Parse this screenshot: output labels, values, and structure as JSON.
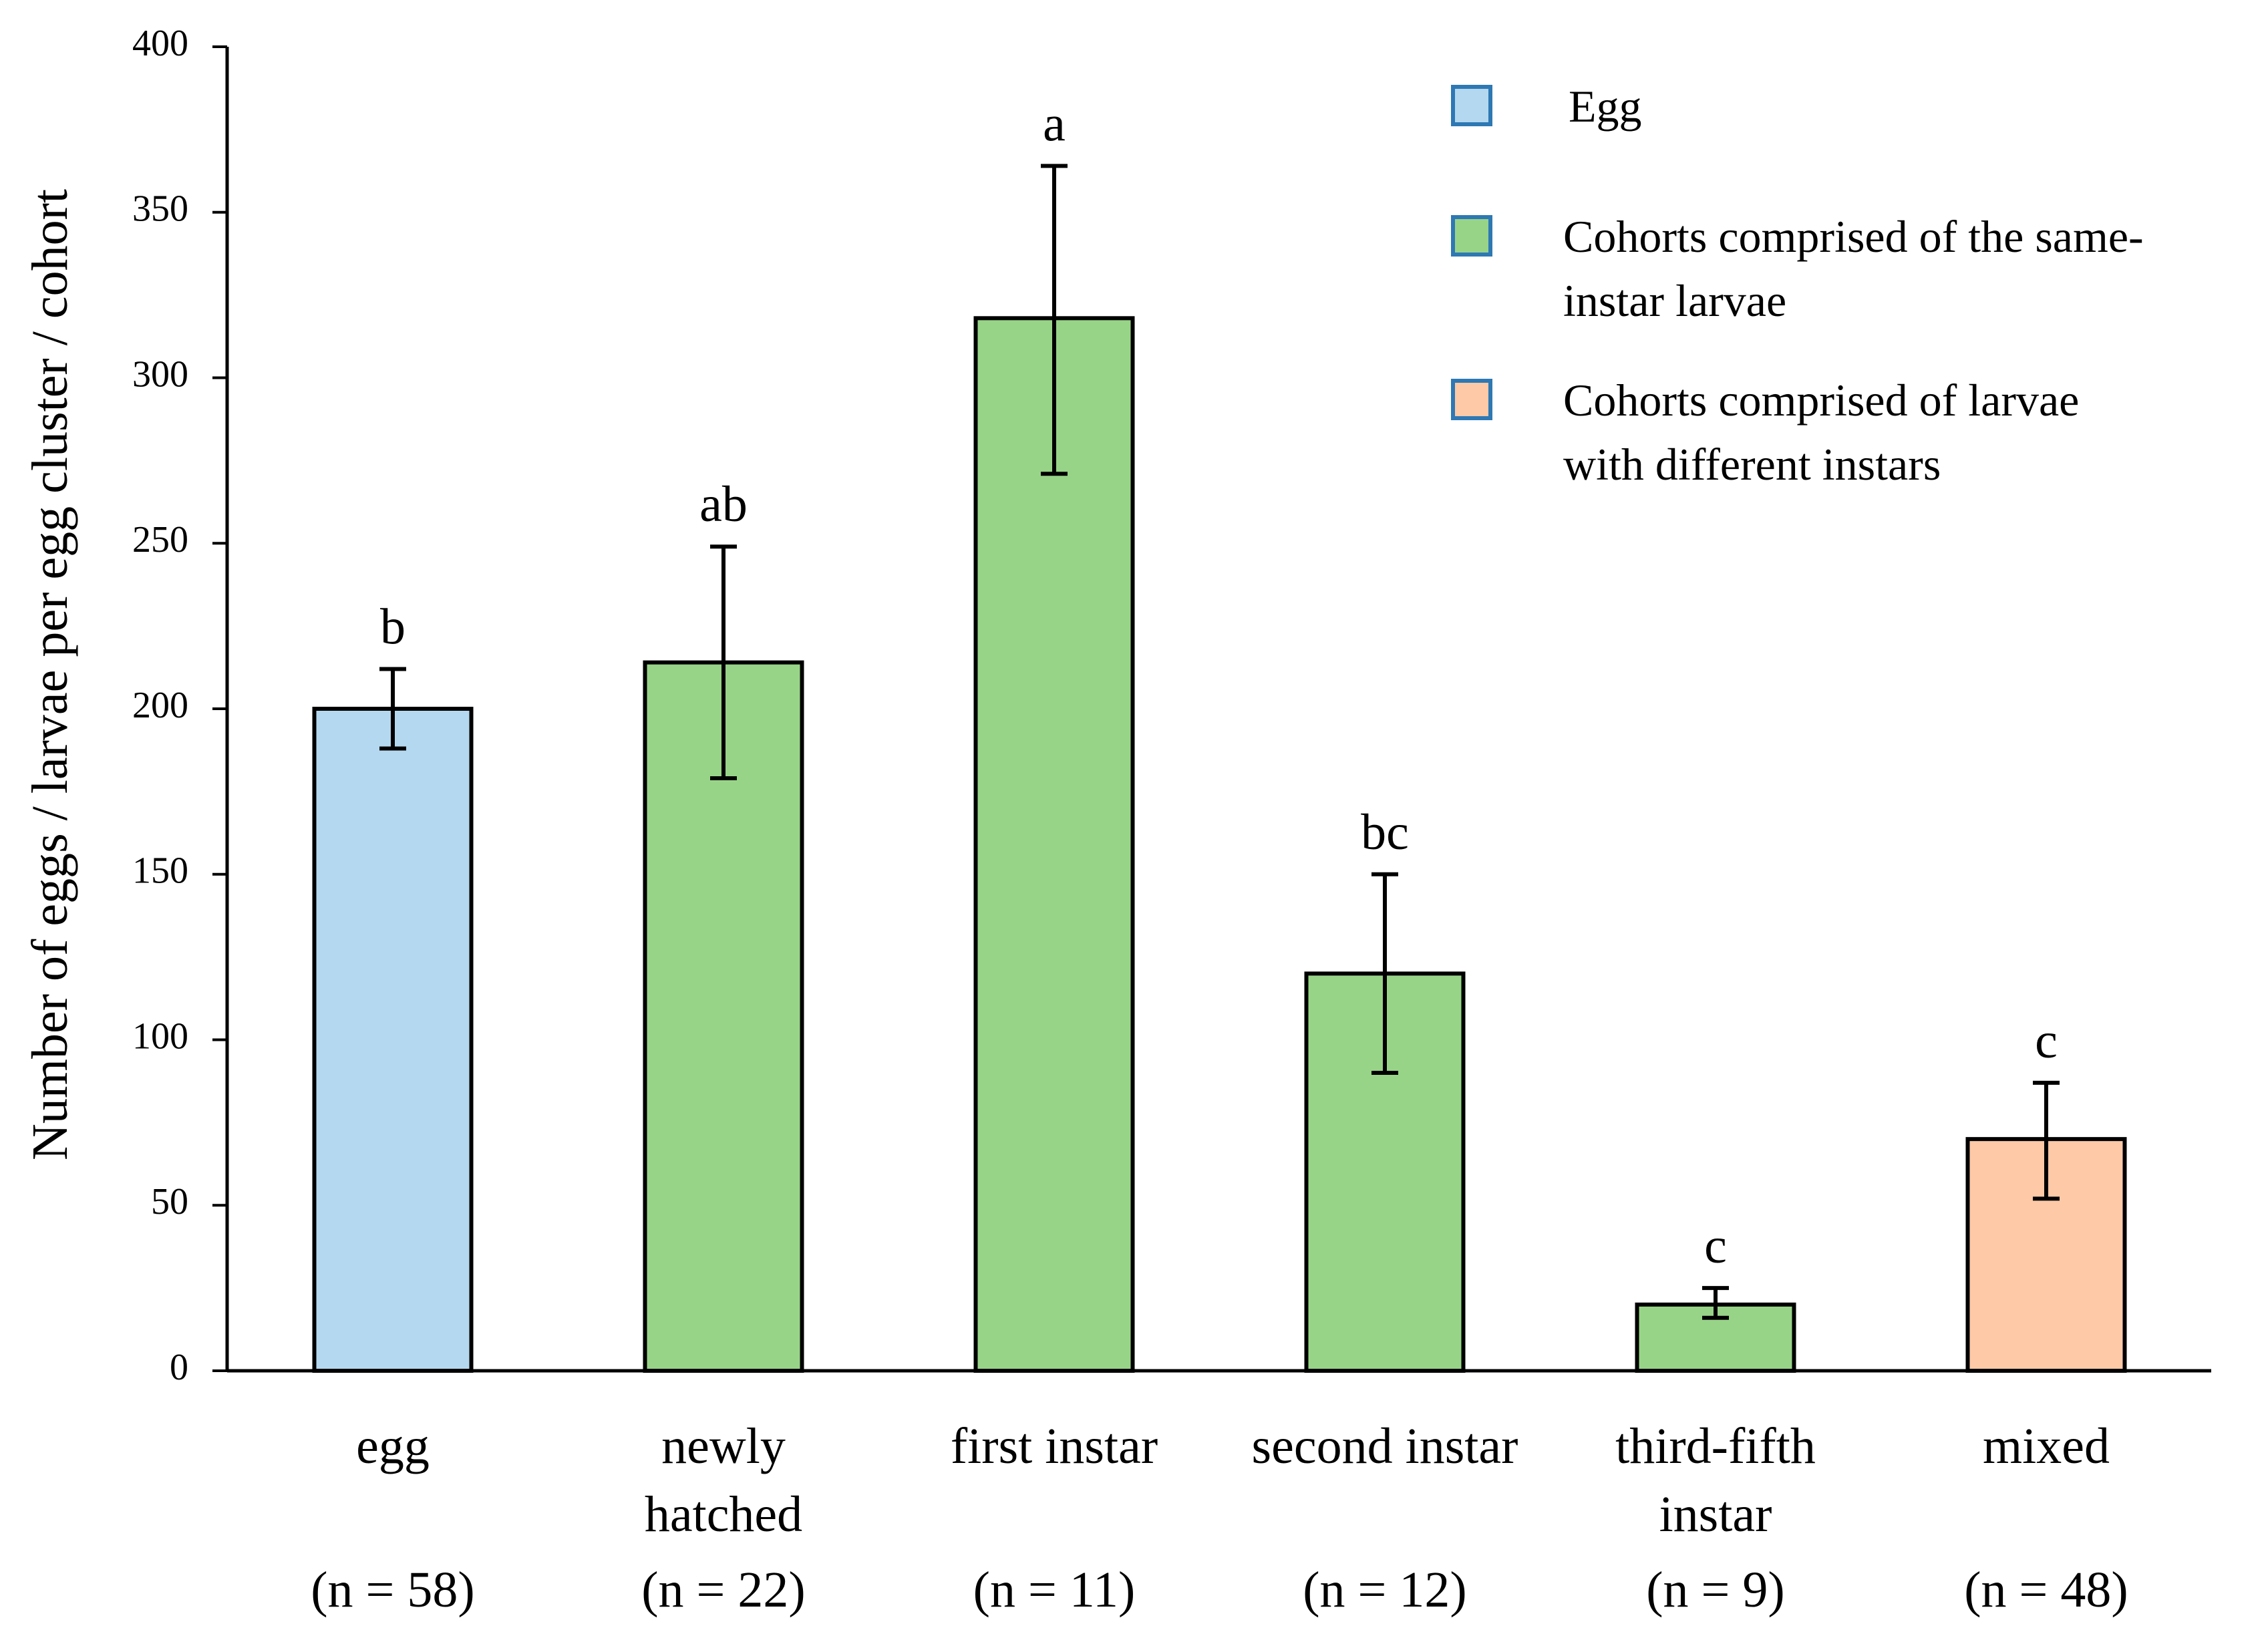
{
  "chart_data": {
    "type": "bar",
    "title": "",
    "xlabel": "",
    "ylabel": "Number of eggs / larvae per egg cluster / cohort",
    "ylim": [
      0,
      400
    ],
    "yticks": [
      0,
      50,
      100,
      150,
      200,
      250,
      300,
      350,
      400
    ],
    "grid": false,
    "legend_position": "top-right",
    "categories": [
      {
        "label_lines": [
          "egg"
        ],
        "n": "(n = 58)",
        "value": 200,
        "err_low": 188,
        "err_high": 212,
        "letter": "b",
        "group": "egg"
      },
      {
        "label_lines": [
          "newly",
          "hatched"
        ],
        "n": "(n = 22)",
        "value": 214,
        "err_low": 179,
        "err_high": 249,
        "letter": "ab",
        "group": "same"
      },
      {
        "label_lines": [
          "first instar"
        ],
        "n": "(n = 11)",
        "value": 318,
        "err_low": 271,
        "err_high": 364,
        "letter": "a",
        "group": "same"
      },
      {
        "label_lines": [
          "second instar"
        ],
        "n": "(n = 12)",
        "value": 120,
        "err_low": 90,
        "err_high": 150,
        "letter": "bc",
        "group": "same"
      },
      {
        "label_lines": [
          "third-fifth",
          "instar"
        ],
        "n": "(n = 9)",
        "value": 20,
        "err_low": 16,
        "err_high": 25,
        "letter": "c",
        "group": "same"
      },
      {
        "label_lines": [
          "mixed"
        ],
        "n": "(n = 48)",
        "value": 70,
        "err_low": 52,
        "err_high": 87,
        "letter": "c",
        "group": "mixed"
      }
    ],
    "legend": [
      {
        "group": "egg",
        "lines": [
          "Egg"
        ],
        "color": "#b4d8ef"
      },
      {
        "group": "same",
        "lines": [
          "Cohorts comprised of the same-",
          "instar larvae"
        ],
        "color": "#98d488"
      },
      {
        "group": "mixed",
        "lines": [
          "Cohorts comprised of larvae",
          "with different instars"
        ],
        "color": "#fdc9a6"
      }
    ],
    "legend_marker_border": "#2e78b4"
  }
}
